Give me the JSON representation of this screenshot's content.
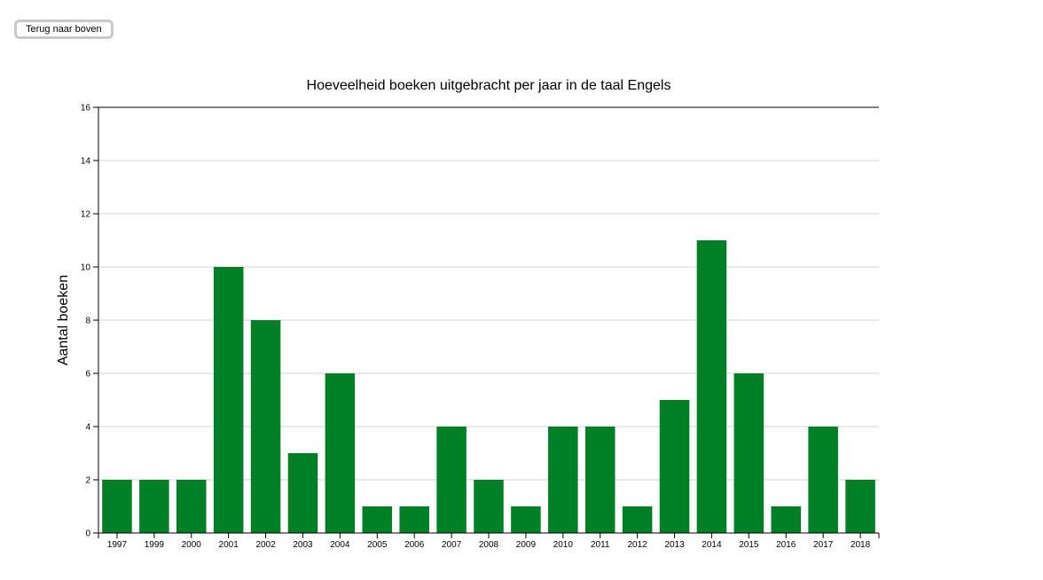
{
  "header": {
    "back_to_top_label": "Terug naar boven"
  },
  "chart_data": {
    "type": "bar",
    "title": "Hoeveelheid boeken uitgebracht per jaar in de taal Engels",
    "xlabel": "",
    "ylabel": "Aantal boeken",
    "categories": [
      "1997",
      "1999",
      "2000",
      "2001",
      "2002",
      "2003",
      "2004",
      "2005",
      "2006",
      "2007",
      "2008",
      "2009",
      "2010",
      "2011",
      "2012",
      "2013",
      "2014",
      "2015",
      "2016",
      "2017",
      "2018"
    ],
    "values": [
      2,
      2,
      2,
      10,
      8,
      3,
      6,
      1,
      1,
      4,
      2,
      1,
      4,
      4,
      1,
      5,
      11,
      6,
      1,
      4,
      2
    ],
    "ylim": [
      0,
      16
    ],
    "yticks": [
      0,
      2,
      4,
      6,
      8,
      10,
      12,
      14,
      16
    ],
    "grid": true,
    "bar_color": "#008026",
    "grid_color": "#d3d3d3"
  }
}
